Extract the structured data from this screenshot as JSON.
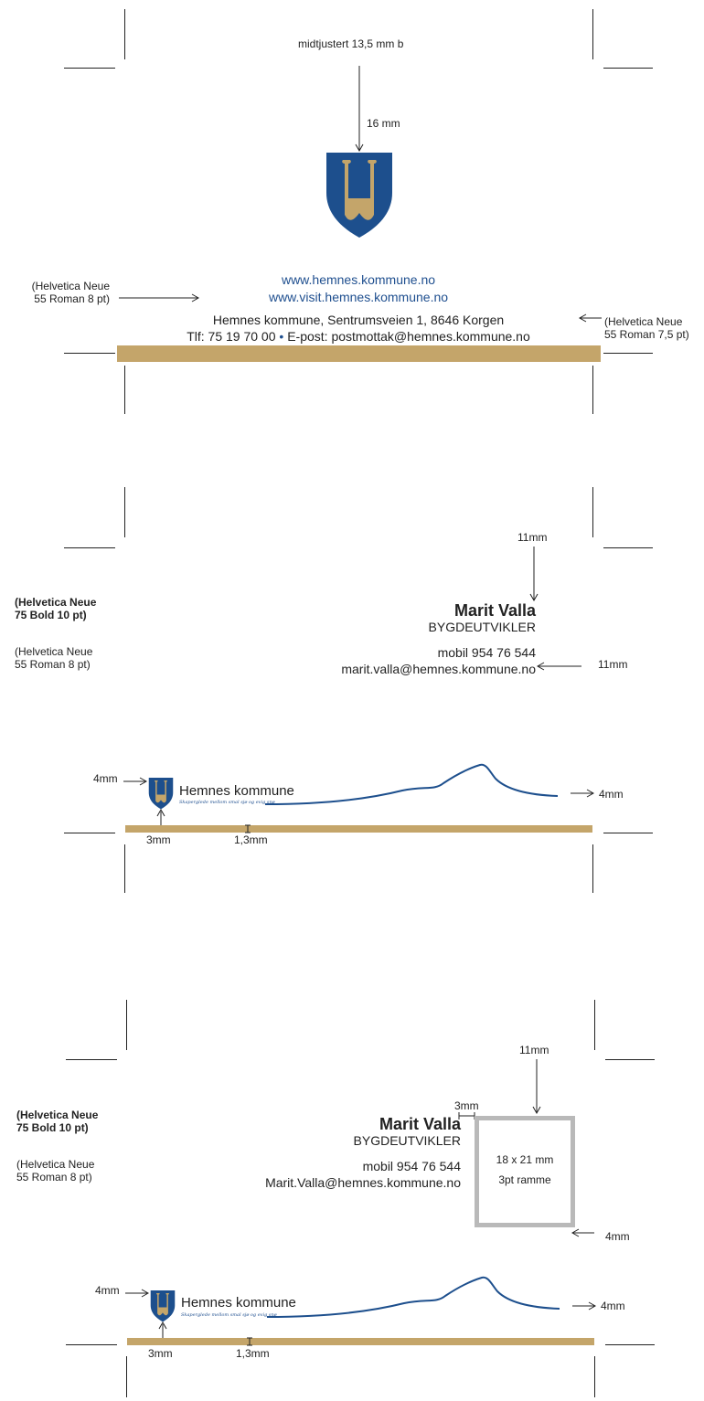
{
  "colors": {
    "gold": "#c4a56a",
    "blue": "#1f4f8f",
    "shield": "#1d4f8d",
    "frame": "#b9b9b9"
  },
  "icons": [
    "coat-of-arms-icon",
    "arrow-icon",
    "wave-decoration"
  ],
  "letterhead": {
    "top_note": "midtjustert 13,5 mm b",
    "top_gap": "16 mm",
    "web1": "www.hemnes.kommune.no",
    "web2": "www.visit.hemnes.kommune.no",
    "address": "Hemnes kommune, Sentrumsveien 1, 8646 Korgen",
    "contact_tel": "Tlf: 75 19 70 00",
    "bullet": "•",
    "contact_email": "E-post: postmottak@hemnes.kommune.no",
    "font_left_1": "(Helvetica Neue",
    "font_left_2": "55 Roman 8 pt)",
    "font_right_1": "(Helvetica Neue",
    "font_right_2": "55 Roman 7,5 pt)"
  },
  "card1": {
    "top_margin": "11mm",
    "name": "Marit Valla",
    "title": "BYGDEUTVIKLER",
    "mobile": "mobil 954 76 544",
    "email": "marit.valla@hemnes.kommune.no",
    "right_margin": "11mm",
    "font_bold_1": "(Helvetica Neue",
    "font_bold_2": "75 Bold 10 pt)",
    "font_reg_1": "(Helvetica Neue",
    "font_reg_2": "55 Roman 8 pt)",
    "logo_margin_top": "4mm",
    "logo_text": "Hemnes kommune",
    "tagline": "Skaperglede mellom smal sjø og evig snø",
    "logo_margin_right": "4mm",
    "logo_margin_bottom": "3mm",
    "band_height": "1,3mm"
  },
  "card2": {
    "top_margin": "11mm",
    "gap": "3mm",
    "name": "Marit Valla",
    "title": "BYGDEUTVIKLER",
    "mobile": "mobil 954 76 544",
    "email": "Marit.Valla@hemnes.kommune.no",
    "photo_size": "18 x 21 mm",
    "photo_frame": "3pt ramme",
    "bottom_margin": "4mm",
    "font_bold_1": "(Helvetica Neue",
    "font_bold_2": "75 Bold 10 pt)",
    "font_reg_1": "(Helvetica Neue",
    "font_reg_2": "55 Roman 8 pt)",
    "logo_margin_top": "4mm",
    "logo_text": "Hemnes kommune",
    "tagline": "Skaperglede mellom smal sjø og evig snø",
    "logo_margin_right": "4mm",
    "logo_margin_bottom": "3mm",
    "band_height": "1,3mm"
  }
}
